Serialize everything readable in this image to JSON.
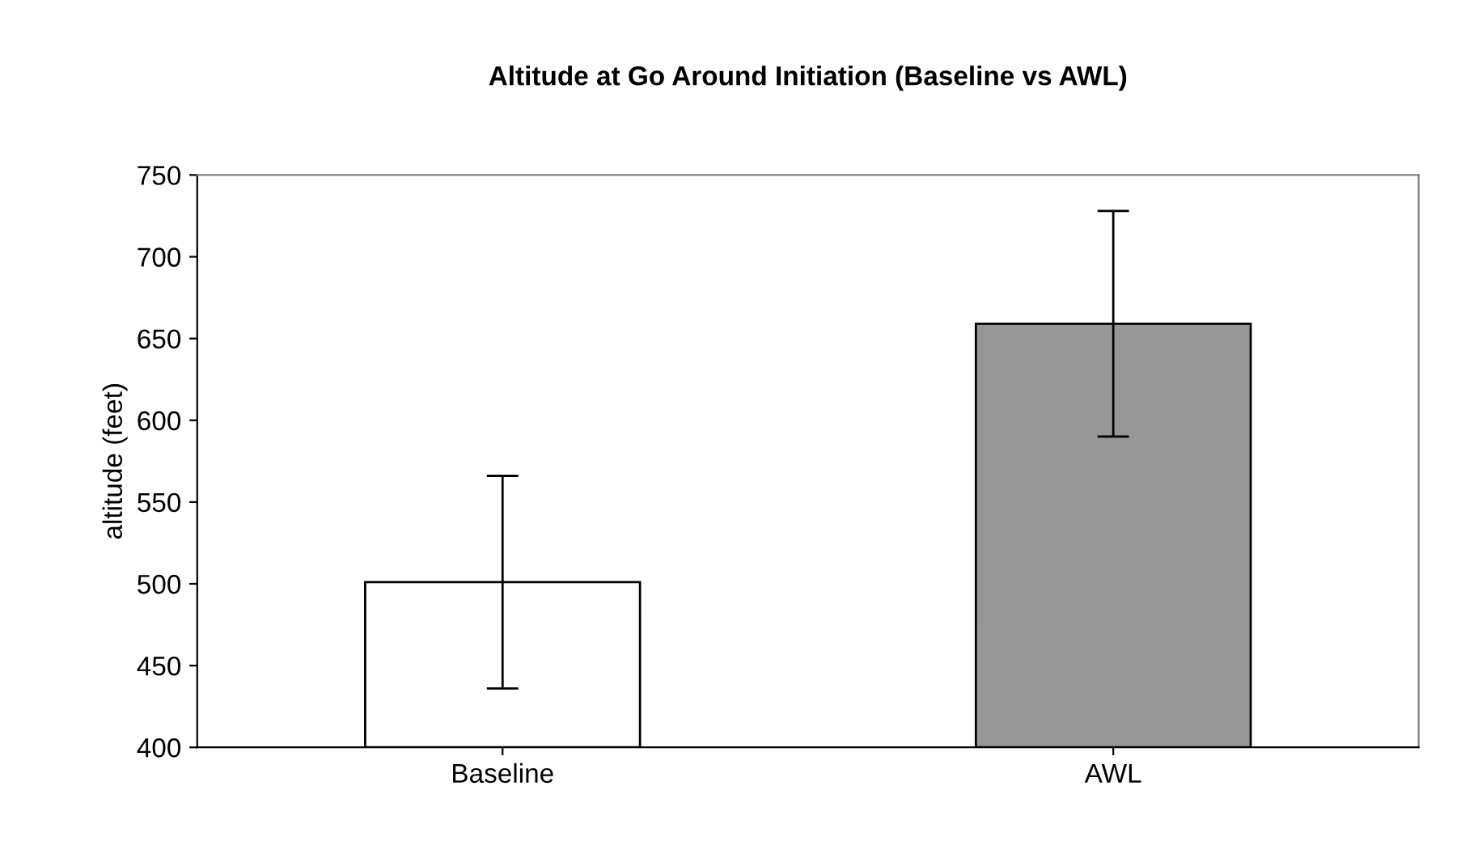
{
  "chart_data": {
    "type": "bar",
    "title": "Altitude at Go Around Initiation (Baseline vs AWL)",
    "ylabel": "altitude (feet)",
    "categories": [
      "Baseline",
      "AWL"
    ],
    "values": [
      501,
      659
    ],
    "errors": [
      65,
      69
    ],
    "colors": [
      "#ffffff",
      "#969696"
    ],
    "ylim": [
      400,
      750
    ],
    "yticks": [
      400,
      450,
      500,
      550,
      600,
      650,
      700,
      750
    ],
    "grid": false,
    "legend": false
  }
}
